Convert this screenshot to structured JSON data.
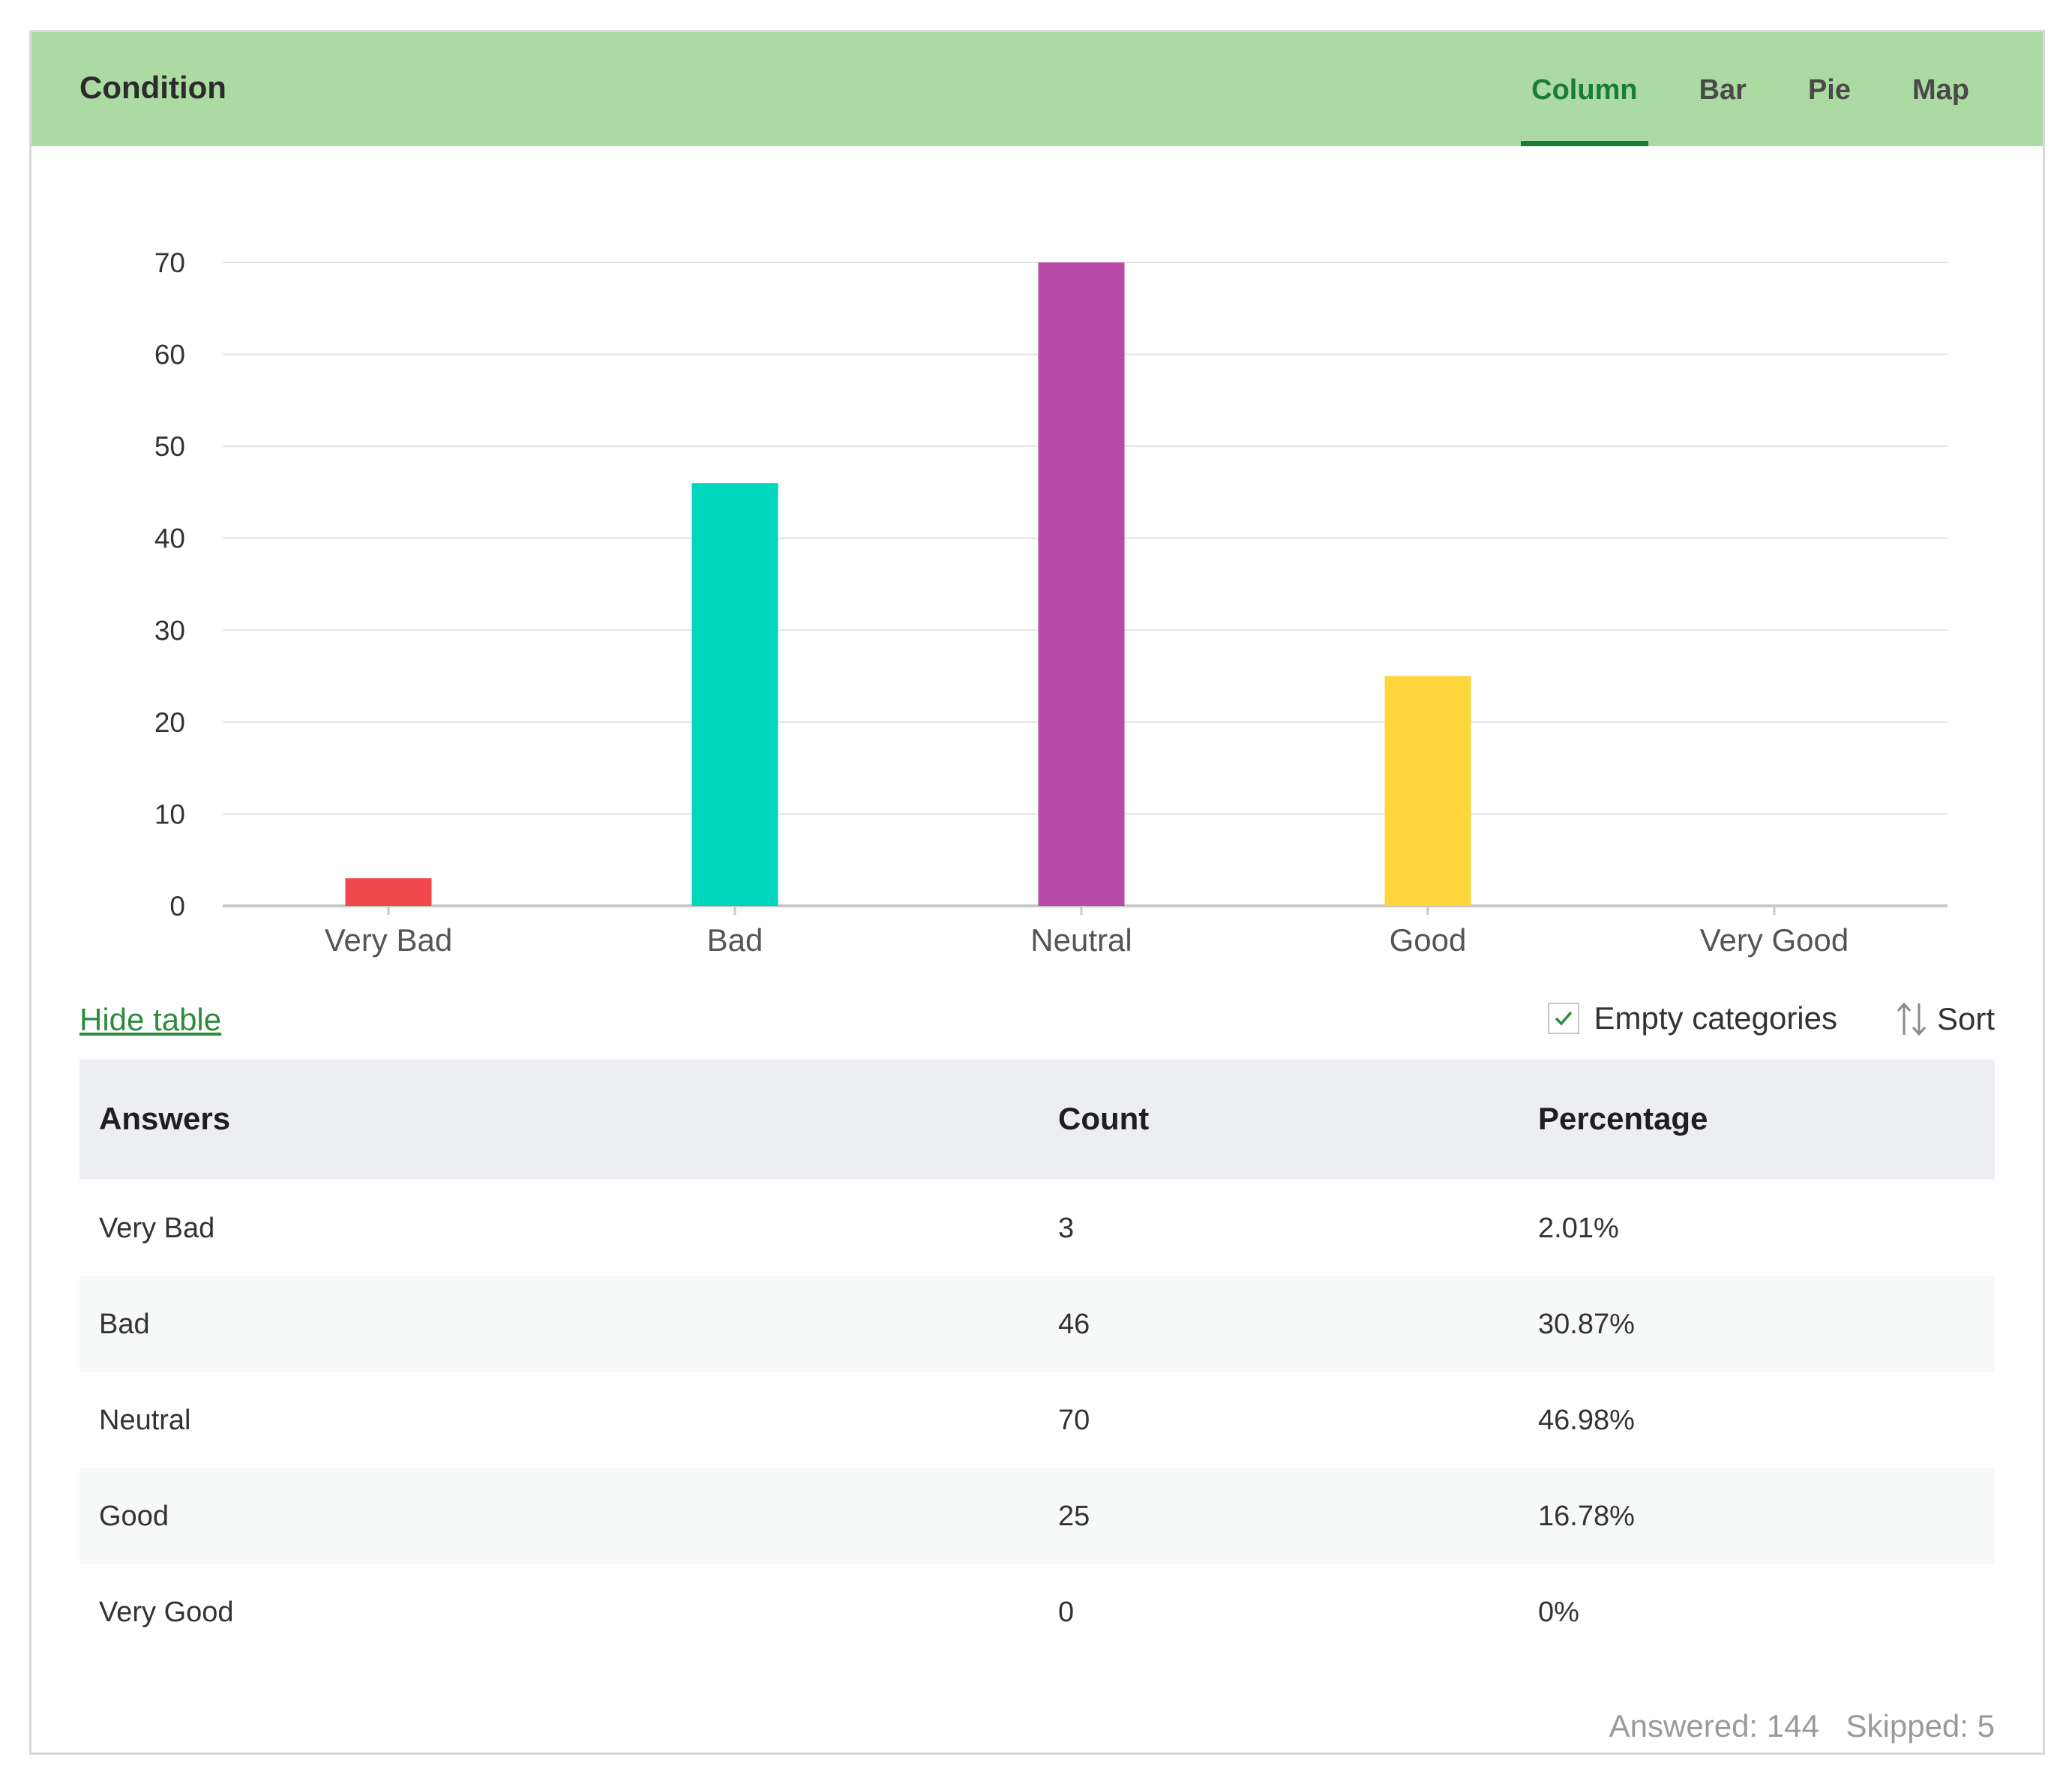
{
  "header": {
    "title": "Condition",
    "tabs": [
      {
        "label": "Column",
        "active": true
      },
      {
        "label": "Bar",
        "active": false
      },
      {
        "label": "Pie",
        "active": false
      },
      {
        "label": "Map",
        "active": false
      }
    ]
  },
  "colors": {
    "header_bg": "#abdaa2",
    "accent": "#1a7d36",
    "link": "#2e8b3e"
  },
  "chart_data": {
    "type": "bar",
    "categories": [
      "Very Bad",
      "Bad",
      "Neutral",
      "Good",
      "Very Good"
    ],
    "values": [
      3,
      46,
      70,
      25,
      0
    ],
    "colors": [
      "#f0474b",
      "#00d6bb",
      "#b94aa9",
      "#ffd53c",
      "#cccccc"
    ],
    "ylim": [
      0,
      70
    ],
    "yticks": [
      0,
      10,
      20,
      30,
      40,
      50,
      60,
      70
    ],
    "grid": true
  },
  "toolbar": {
    "hide_table": "Hide table",
    "empty_categories": "Empty categories",
    "empty_categories_checked": true,
    "sort": "Sort"
  },
  "table": {
    "headers": [
      "Answers",
      "Count",
      "Percentage"
    ],
    "rows": [
      [
        "Very Bad",
        "3",
        "2.01%"
      ],
      [
        "Bad",
        "46",
        "30.87%"
      ],
      [
        "Neutral",
        "70",
        "46.98%"
      ],
      [
        "Good",
        "25",
        "16.78%"
      ],
      [
        "Very Good",
        "0",
        "0%"
      ]
    ]
  },
  "footer": {
    "answered": "Answered: 144",
    "skipped": "Skipped: 5"
  }
}
